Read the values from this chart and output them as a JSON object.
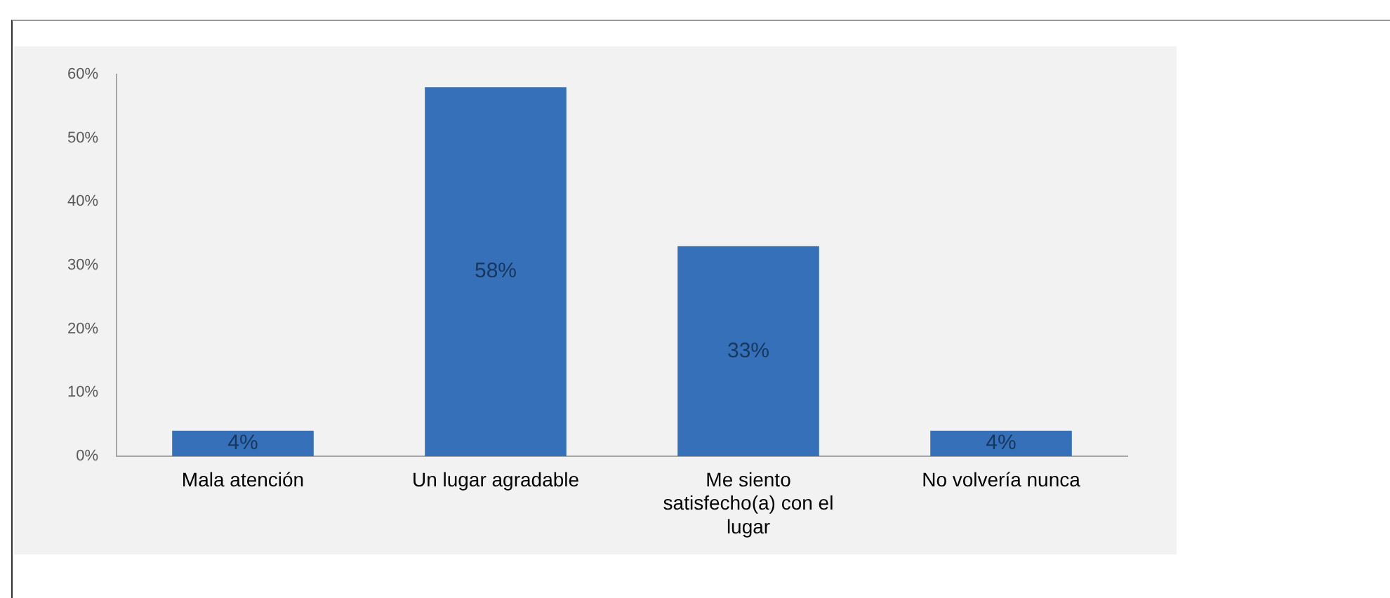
{
  "chart_data": {
    "type": "bar",
    "categories": [
      "Mala atención",
      "Un lugar agradable",
      "Me siento satisfecho(a) con el lugar",
      "No volvería nunca"
    ],
    "values": [
      4,
      58,
      33,
      4
    ],
    "color": "#3670b8",
    "value_labels": [
      "4%",
      "58%",
      "33%",
      "4%"
    ],
    "ylim": [
      0,
      60
    ],
    "yticks": [
      {
        "value": 0,
        "label": "0%"
      },
      {
        "value": 10,
        "label": "10%"
      },
      {
        "value": 20,
        "label": "20%"
      },
      {
        "value": 30,
        "label": "30%"
      },
      {
        "value": 40,
        "label": "40%"
      },
      {
        "value": 50,
        "label": "50%"
      },
      {
        "value": 60,
        "label": "60%"
      }
    ]
  }
}
